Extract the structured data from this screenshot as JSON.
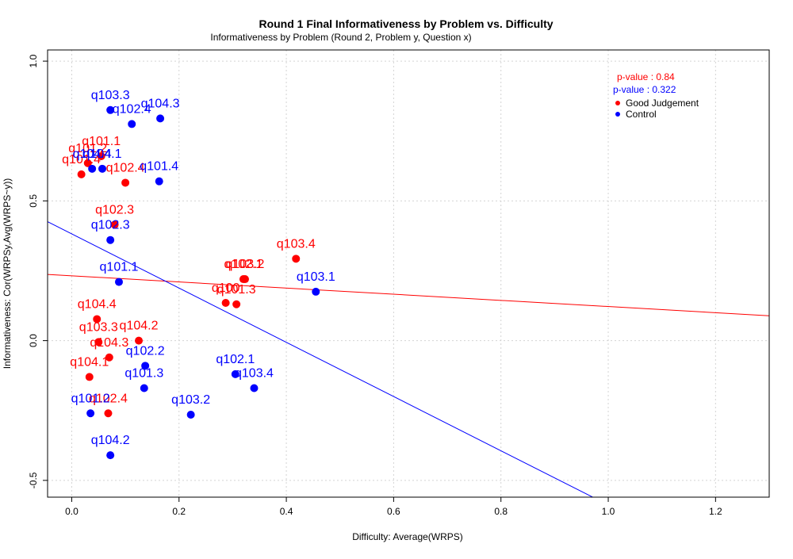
{
  "chart_data": {
    "type": "scatter",
    "title": "Round 1 Final Informativeness by Problem vs. Difficulty",
    "subtitle": "Informativeness by Problem (Round 2, Problem y, Question x)",
    "xlabel": "Difficulty: Average(WRPS)",
    "ylabel": "Informativeness: Cor(WRPSy,Avg(WRPS~y))",
    "xlim": [
      -0.045,
      1.3
    ],
    "ylim": [
      -0.56,
      1.04
    ],
    "x_ticks": [
      0,
      0.2,
      0.4,
      0.6,
      0.8,
      1,
      1.2
    ],
    "x_tick_labels": [
      "0.0",
      "0.2",
      "0.4",
      "0.6",
      "0.8",
      "1.0",
      "1.2"
    ],
    "y_ticks": [
      -0.5,
      0,
      0.5,
      1
    ],
    "y_tick_labels": [
      "-0.5",
      "0.0",
      "0.5",
      "1.0"
    ],
    "grid": true,
    "legend_position": "top-right",
    "pvalues": [
      {
        "label": "p-value : 0.84",
        "color": "#ff0000"
      },
      {
        "label": "p-value : 0.322",
        "color": "#0000ff"
      }
    ],
    "series": [
      {
        "name": "Good Judgement",
        "color": "#ff0000",
        "trend": {
          "intercept": 0.232,
          "slope": -0.11
        },
        "points": [
          {
            "label": "q101.1",
            "x": 0.055,
            "y": 0.66
          },
          {
            "label": "q101.2",
            "x": 0.03,
            "y": 0.635
          },
          {
            "label": "q101.4",
            "x": 0.018,
            "y": 0.595
          },
          {
            "label": "q102.4",
            "x": 0.1,
            "y": 0.565
          },
          {
            "label": "q102.3",
            "x": 0.08,
            "y": 0.415
          },
          {
            "label": "q103.2",
            "x": 0.323,
            "y": 0.22
          },
          {
            "label": "q102.1",
            "x": 0.32,
            "y": 0.22
          },
          {
            "label": "q103.4",
            "x": 0.418,
            "y": 0.293
          },
          {
            "label": "q100",
            "x": 0.287,
            "y": 0.135
          },
          {
            "label": "q101.3",
            "x": 0.307,
            "y": 0.13
          },
          {
            "label": "q104.4",
            "x": 0.047,
            "y": 0.077
          },
          {
            "label": "q103.3",
            "x": 0.05,
            "y": -0.005
          },
          {
            "label": "q104.2",
            "x": 0.125,
            "y": 0.0
          },
          {
            "label": "q104.3",
            "x": 0.07,
            "y": -0.06
          },
          {
            "label": "q104.1",
            "x": 0.033,
            "y": -0.13
          },
          {
            "label": "q102.4",
            "x": 0.068,
            "y": -0.26
          }
        ]
      },
      {
        "name": "Control",
        "color": "#0000ff",
        "trend": {
          "intercept": 0.382,
          "slope": -0.97
        },
        "points": [
          {
            "label": "q103.3",
            "x": 0.072,
            "y": 0.825
          },
          {
            "label": "q102.4",
            "x": 0.112,
            "y": 0.775
          },
          {
            "label": "q104.3",
            "x": 0.165,
            "y": 0.795
          },
          {
            "label": "q104.4",
            "x": 0.038,
            "y": 0.615
          },
          {
            "label": "q104.1",
            "x": 0.057,
            "y": 0.615
          },
          {
            "label": "q101.4",
            "x": 0.163,
            "y": 0.57
          },
          {
            "label": "q102.3",
            "x": 0.072,
            "y": 0.36
          },
          {
            "label": "q101.1",
            "x": 0.088,
            "y": 0.21
          },
          {
            "label": "q103.1",
            "x": 0.455,
            "y": 0.175
          },
          {
            "label": "q102.2",
            "x": 0.137,
            "y": -0.09
          },
          {
            "label": "q101.3",
            "x": 0.135,
            "y": -0.17
          },
          {
            "label": "q102.1",
            "x": 0.305,
            "y": -0.12
          },
          {
            "label": "q103.4",
            "x": 0.34,
            "y": -0.17
          },
          {
            "label": "q101.2",
            "x": 0.035,
            "y": -0.26
          },
          {
            "label": "q103.2",
            "x": 0.222,
            "y": -0.265
          },
          {
            "label": "q104.2",
            "x": 0.072,
            "y": -0.41
          }
        ]
      }
    ]
  }
}
